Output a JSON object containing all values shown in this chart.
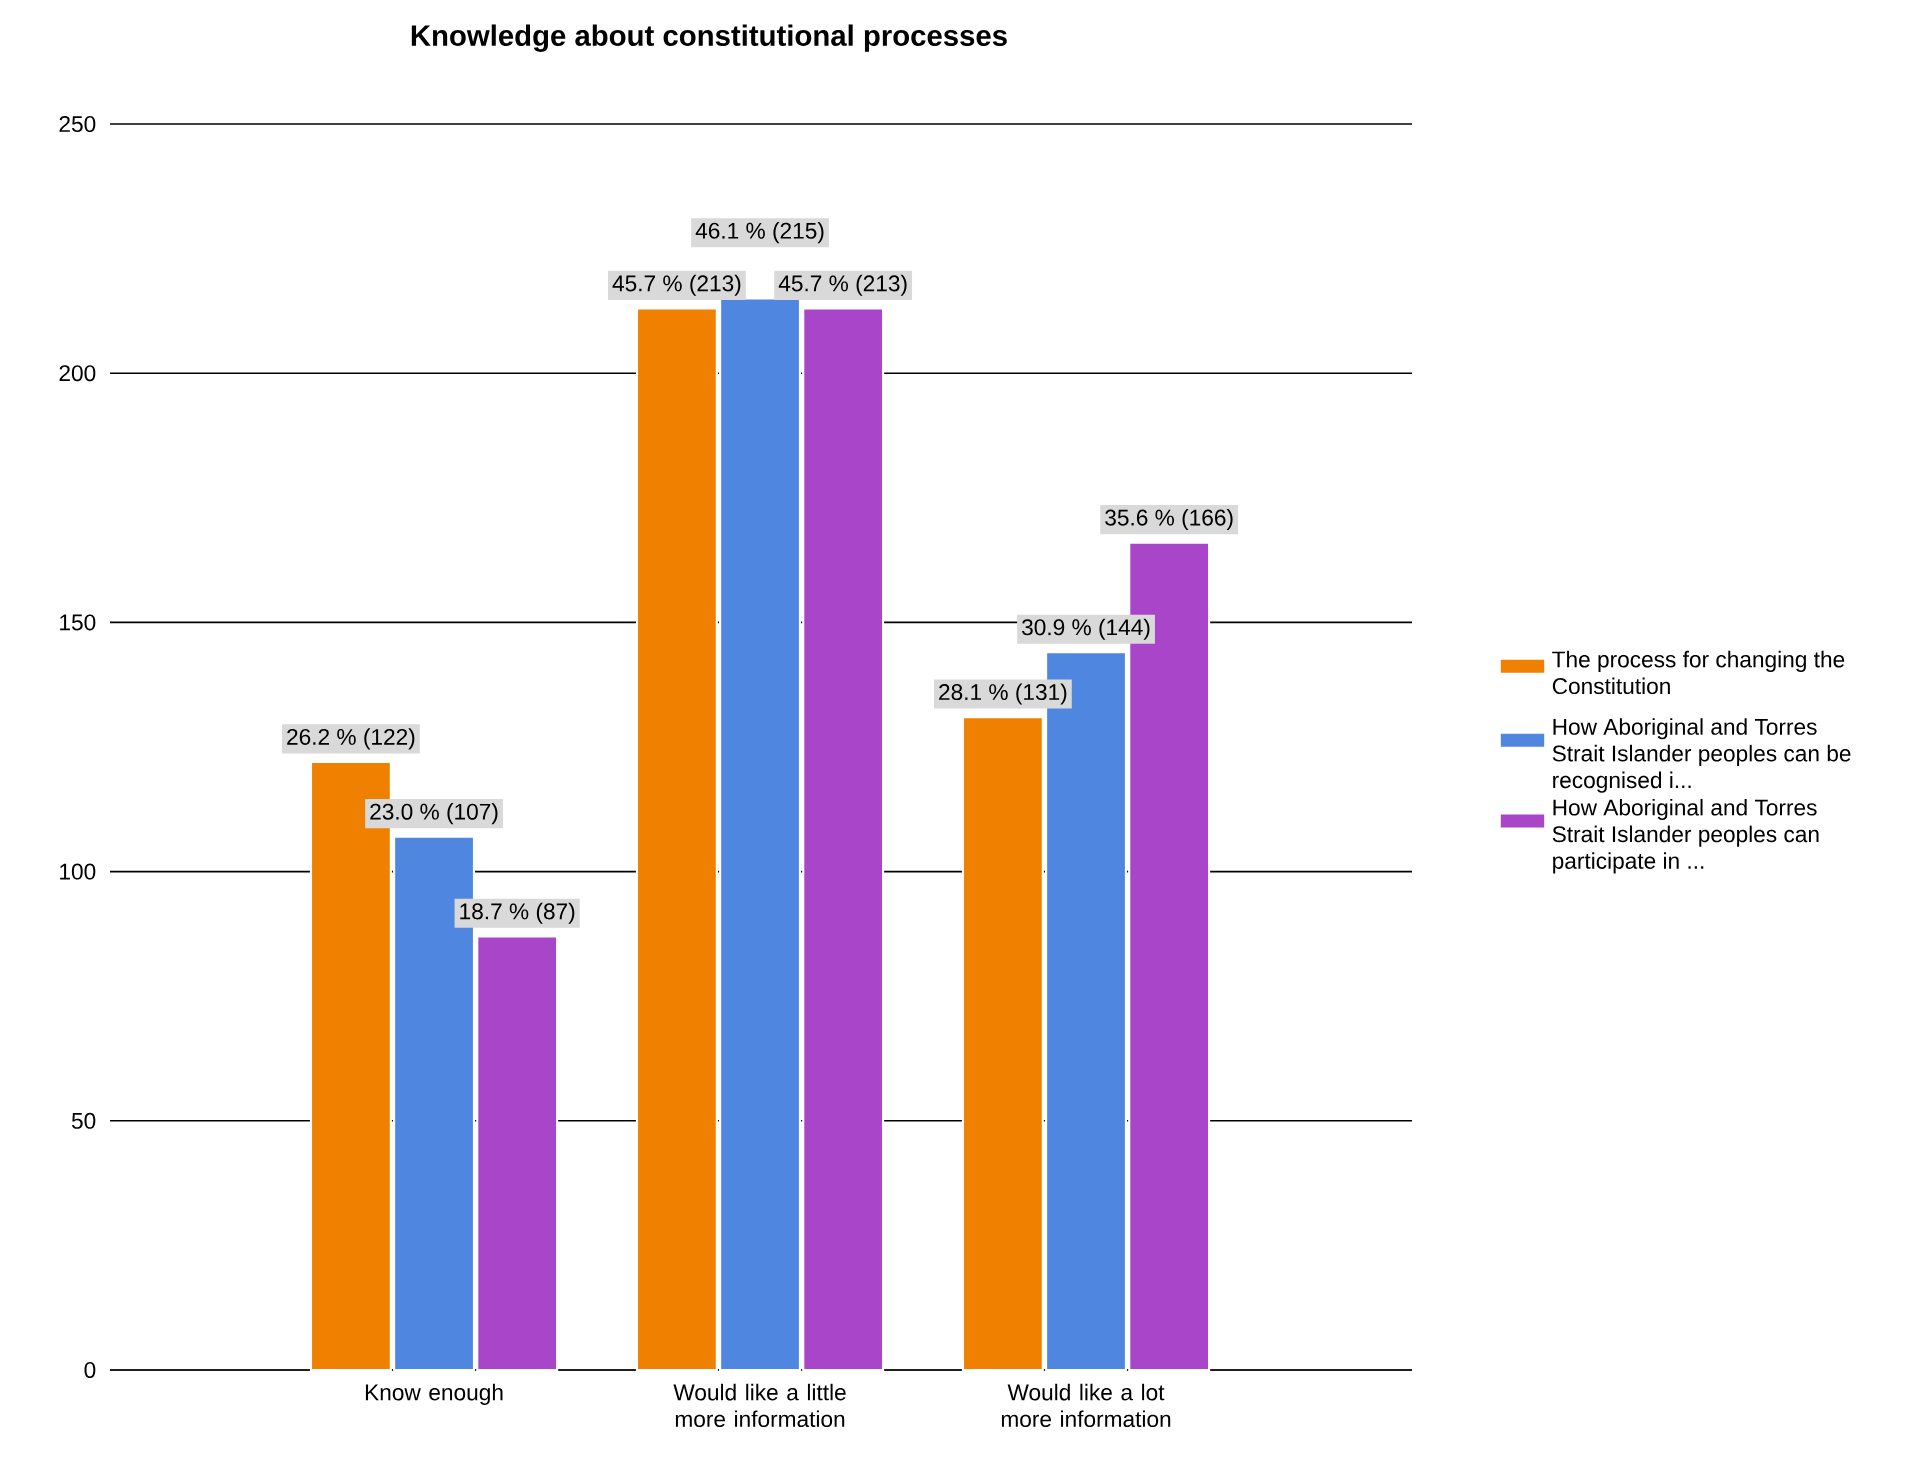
{
  "chart_data": {
    "type": "bar",
    "title": "Knowledge about constitutional processes",
    "categories": [
      "Know enough",
      "Would like a little more information",
      "Would like a lot more information"
    ],
    "series": [
      {
        "name": "The process for changing the Constitution",
        "color": "#f08000",
        "values": [
          122,
          213,
          131
        ],
        "value_labels": [
          "26.2 % (122)",
          "45.7 % (213)",
          "28.1 % (131)"
        ]
      },
      {
        "name": "How Aboriginal and Torres Strait Islander peoples can be recognised i...",
        "color": "#4f86e0",
        "values": [
          107,
          215,
          144
        ],
        "value_labels": [
          "23.0 % (107)",
          "46.1 % (215)",
          "30.9 % (144)"
        ]
      },
      {
        "name": "How Aboriginal and Torres Strait Islander peoples can participate in ...",
        "color": "#a845c8",
        "values": [
          87,
          213,
          166
        ],
        "value_labels": [
          "18.7 % (87)",
          "45.7 % (213)",
          "35.6 % (166)"
        ]
      }
    ],
    "ylim": [
      0,
      250
    ],
    "yticks": [
      0,
      50,
      100,
      150,
      200,
      250
    ],
    "grid": "y",
    "legend": "right"
  }
}
